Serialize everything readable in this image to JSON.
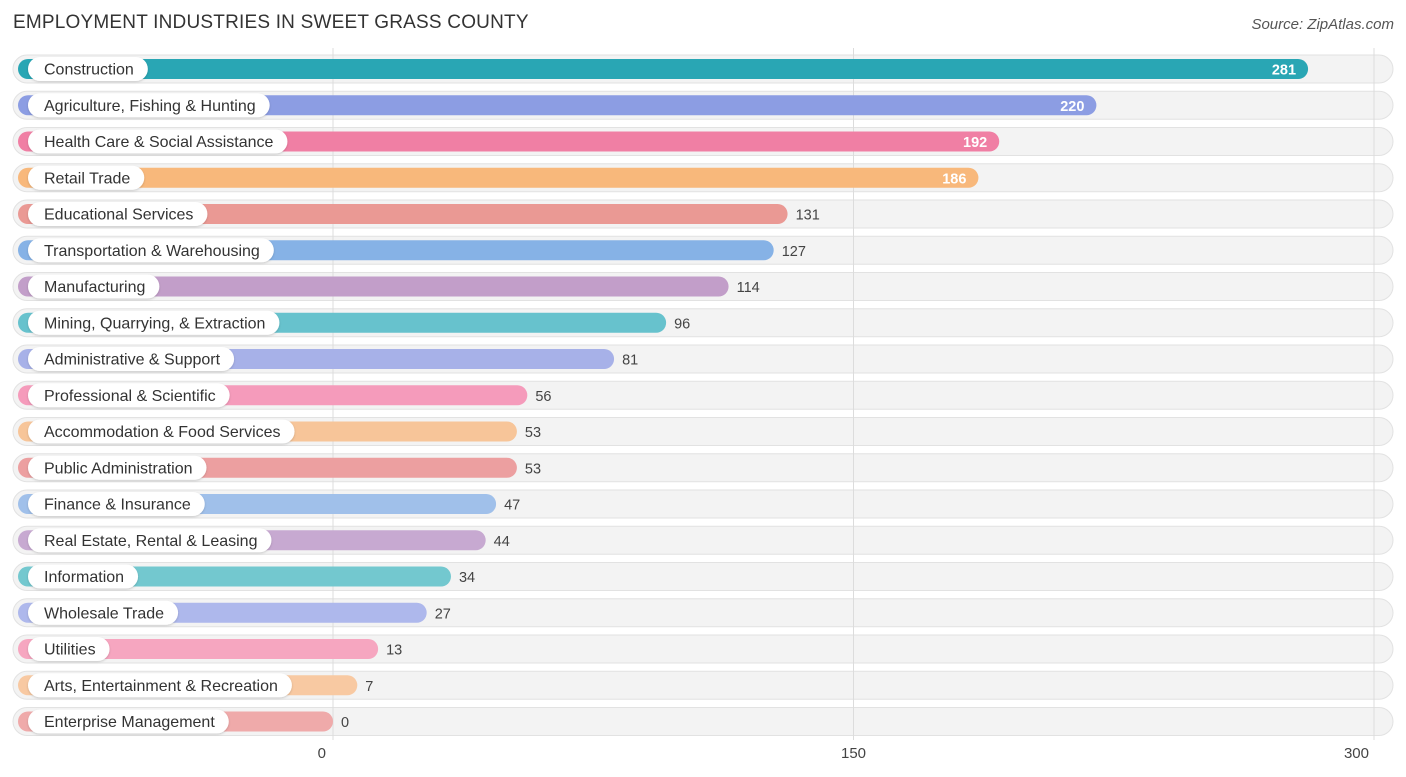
{
  "header": {
    "title": "EMPLOYMENT INDUSTRIES IN SWEET GRASS COUNTY",
    "source": "Source: ZipAtlas.com"
  },
  "chart_data": {
    "type": "bar",
    "orientation": "horizontal",
    "title": "EMPLOYMENT INDUSTRIES IN SWEET GRASS COUNTY",
    "xlim": [
      0,
      300
    ],
    "xticks": [
      0,
      150,
      300
    ],
    "xtick_labels": [
      "0",
      "150",
      "300"
    ],
    "grid": true,
    "categories": [
      "Construction",
      "Agriculture, Fishing & Hunting",
      "Health Care & Social Assistance",
      "Retail Trade",
      "Educational Services",
      "Transportation & Warehousing",
      "Manufacturing",
      "Mining, Quarrying, & Extraction",
      "Administrative & Support",
      "Professional & Scientific",
      "Accommodation & Food Services",
      "Public Administration",
      "Finance & Insurance",
      "Real Estate, Rental & Leasing",
      "Information",
      "Wholesale Trade",
      "Utilities",
      "Arts, Entertainment & Recreation",
      "Enterprise Management"
    ],
    "values": [
      281,
      220,
      192,
      186,
      131,
      127,
      114,
      96,
      81,
      56,
      53,
      53,
      47,
      44,
      34,
      27,
      13,
      7,
      0
    ],
    "value_labels": [
      "281",
      "220",
      "192",
      "186",
      "131",
      "127",
      "114",
      "96",
      "81",
      "56",
      "53",
      "53",
      "47",
      "44",
      "34",
      "27",
      "13",
      "7",
      "0"
    ],
    "colors": [
      "#29a6b4",
      "#8c9de3",
      "#f07fa4",
      "#f8b87b",
      "#ea9994",
      "#86b2e6",
      "#c29ec9",
      "#67c2cd",
      "#a7b1e8",
      "#f59bbb",
      "#f7c599",
      "#ec9fa0",
      "#a0c0ea",
      "#c7a9d1",
      "#73c8cf",
      "#aeb8ec",
      "#f6a6c0",
      "#f8c9a2",
      "#efaaaa"
    ]
  }
}
